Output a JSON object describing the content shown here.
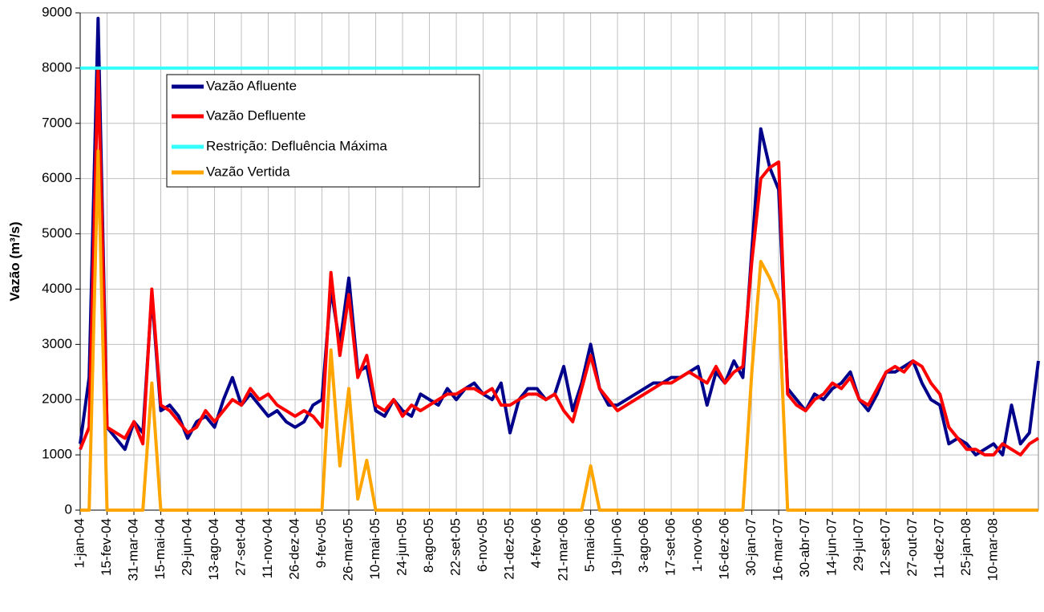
{
  "chart_data": {
    "type": "line",
    "y_label": "Vazão (m³/s)",
    "ylim": [
      0,
      9000
    ],
    "yticks": [
      0,
      1000,
      2000,
      3000,
      4000,
      5000,
      6000,
      7000,
      8000,
      9000
    ],
    "grid": true,
    "categories": [
      "1-jan-04",
      null,
      null,
      "15-fev-04",
      null,
      null,
      "31-mar-04",
      null,
      null,
      "15-mai-04",
      null,
      null,
      "29-jun-04",
      null,
      null,
      "13-ago-04",
      null,
      null,
      "27-set-04",
      null,
      null,
      "11-nov-04",
      null,
      null,
      "26-dez-04",
      null,
      null,
      "9-fev-05",
      null,
      null,
      "26-mar-05",
      null,
      null,
      "10-mai-05",
      null,
      null,
      "24-jun-05",
      null,
      null,
      "8-ago-05",
      null,
      null,
      "22-set-05",
      null,
      null,
      "6-nov-05",
      null,
      null,
      "21-dez-05",
      null,
      null,
      "4-fev-06",
      null,
      null,
      "21-mar-06",
      null,
      null,
      "5-mai-06",
      null,
      null,
      "19-jun-06",
      null,
      null,
      "3-ago-06",
      null,
      null,
      "17-set-06",
      null,
      null,
      "1-nov-06",
      null,
      null,
      "16-dez-06",
      null,
      null,
      "30-jan-07",
      null,
      null,
      "16-mar-07",
      null,
      null,
      "30-abr-07",
      null,
      null,
      "14-jun-07",
      null,
      null,
      "29-jul-07",
      null,
      null,
      "12-set-07",
      null,
      null,
      "27-out-07",
      null,
      null,
      "11-dez-07",
      null,
      null,
      "25-jan-08",
      null,
      null,
      "10-mar-08",
      null,
      null,
      null,
      null,
      null
    ],
    "series": [
      {
        "name": "Vazão Afluente",
        "color": "#00008b",
        "values": [
          1200,
          2400,
          8900,
          1500,
          1300,
          1100,
          1600,
          1400,
          3900,
          1800,
          1900,
          1700,
          1300,
          1600,
          1700,
          1500,
          2000,
          2400,
          1900,
          2100,
          1900,
          1700,
          1800,
          1600,
          1500,
          1600,
          1900,
          2000,
          4000,
          3000,
          4200,
          2500,
          2600,
          1800,
          1700,
          2000,
          1800,
          1700,
          2100,
          2000,
          1900,
          2200,
          2000,
          2200,
          2300,
          2100,
          2000,
          2300,
          1400,
          2000,
          2200,
          2200,
          2000,
          2100,
          2600,
          1800,
          2300,
          3000,
          2200,
          1900,
          1900,
          2000,
          2100,
          2200,
          2300,
          2300,
          2400,
          2400,
          2500,
          2600,
          1900,
          2500,
          2300,
          2700,
          2400,
          4700,
          6900,
          6200,
          5800,
          2200,
          2000,
          1800,
          2100,
          2000,
          2200,
          2300,
          2500,
          2000,
          1800,
          2100,
          2500,
          2500,
          2600,
          2700,
          2300,
          2000,
          1900,
          1200,
          1300,
          1200,
          1000,
          1100,
          1200,
          1000,
          1900,
          1200,
          1400,
          2700
        ]
      },
      {
        "name": "Vazão Defluente",
        "color": "#ff0000",
        "values": [
          1100,
          1500,
          8000,
          1500,
          1400,
          1300,
          1600,
          1200,
          4000,
          1900,
          1800,
          1600,
          1400,
          1500,
          1800,
          1600,
          1800,
          2000,
          1900,
          2200,
          2000,
          2100,
          1900,
          1800,
          1700,
          1800,
          1700,
          1500,
          4300,
          2800,
          3900,
          2400,
          2800,
          1900,
          1800,
          2000,
          1700,
          1900,
          1800,
          1900,
          2000,
          2100,
          2100,
          2200,
          2200,
          2100,
          2200,
          1900,
          1900,
          2000,
          2100,
          2100,
          2000,
          2100,
          1800,
          1600,
          2200,
          2800,
          2200,
          2000,
          1800,
          1900,
          2000,
          2100,
          2200,
          2300,
          2300,
          2400,
          2500,
          2400,
          2300,
          2600,
          2300,
          2500,
          2600,
          4500,
          6000,
          6200,
          6300,
          2100,
          1900,
          1800,
          2000,
          2100,
          2300,
          2200,
          2400,
          2000,
          1900,
          2200,
          2500,
          2600,
          2500,
          2700,
          2600,
          2300,
          2100,
          1500,
          1300,
          1100,
          1100,
          1000,
          1000,
          1200,
          1100,
          1000,
          1200,
          1300
        ]
      },
      {
        "name": "Restrição: Defluência Máxima",
        "color": "#33ffff",
        "values": [
          8000,
          8000,
          8000,
          8000,
          8000,
          8000,
          8000,
          8000,
          8000,
          8000,
          8000,
          8000,
          8000,
          8000,
          8000,
          8000,
          8000,
          8000,
          8000,
          8000,
          8000,
          8000,
          8000,
          8000,
          8000,
          8000,
          8000,
          8000,
          8000,
          8000,
          8000,
          8000,
          8000,
          8000,
          8000,
          8000,
          8000,
          8000,
          8000,
          8000,
          8000,
          8000,
          8000,
          8000,
          8000,
          8000,
          8000,
          8000,
          8000,
          8000,
          8000,
          8000,
          8000,
          8000,
          8000,
          8000,
          8000,
          8000,
          8000,
          8000,
          8000,
          8000,
          8000,
          8000,
          8000,
          8000,
          8000,
          8000,
          8000,
          8000,
          8000,
          8000,
          8000,
          8000,
          8000,
          8000,
          8000,
          8000,
          8000,
          8000,
          8000,
          8000,
          8000,
          8000,
          8000,
          8000,
          8000,
          8000,
          8000,
          8000,
          8000,
          8000,
          8000,
          8000,
          8000,
          8000,
          8000,
          8000,
          8000,
          8000,
          8000,
          8000,
          8000,
          8000,
          8000,
          8000,
          8000,
          8000
        ]
      },
      {
        "name": "Vazão Vertida",
        "color": "#ffa500",
        "values": [
          0,
          0,
          6500,
          0,
          0,
          0,
          0,
          0,
          2300,
          0,
          0,
          0,
          0,
          0,
          0,
          0,
          0,
          0,
          0,
          0,
          0,
          0,
          0,
          0,
          0,
          0,
          0,
          0,
          2900,
          800,
          2200,
          200,
          900,
          0,
          0,
          0,
          0,
          0,
          0,
          0,
          0,
          0,
          0,
          0,
          0,
          0,
          0,
          0,
          0,
          0,
          0,
          0,
          0,
          0,
          0,
          0,
          0,
          800,
          0,
          0,
          0,
          0,
          0,
          0,
          0,
          0,
          0,
          0,
          0,
          0,
          0,
          0,
          0,
          0,
          0,
          2500,
          4500,
          4200,
          3800,
          0,
          0,
          0,
          0,
          0,
          0,
          0,
          0,
          0,
          0,
          0,
          0,
          0,
          0,
          0,
          0,
          0,
          0,
          0,
          0,
          0,
          0,
          0,
          0,
          0,
          0,
          0,
          0,
          0
        ]
      }
    ]
  }
}
